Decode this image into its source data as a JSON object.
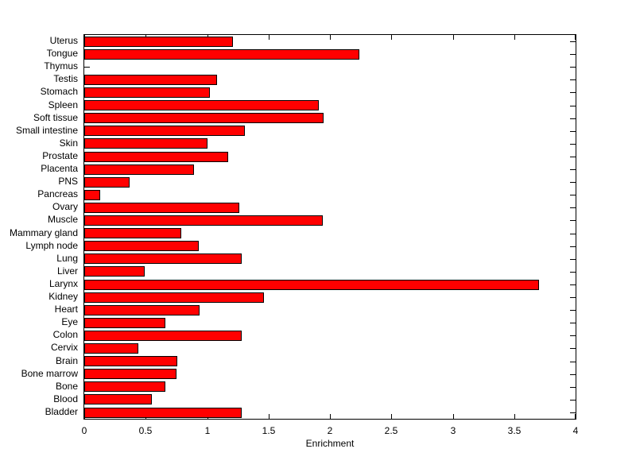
{
  "figure": {
    "background_color": "#ffffff",
    "text_color": "#000000"
  },
  "chart_data": {
    "type": "bar",
    "orientation": "horizontal",
    "title": "",
    "xlabel": "Enrichment",
    "ylabel": "",
    "xlim": [
      0,
      4
    ],
    "x_ticks": [
      0,
      0.5,
      1,
      1.5,
      2,
      2.5,
      3,
      3.5,
      4
    ],
    "x_tick_labels": [
      "0",
      "0.5",
      "1",
      "1.5",
      "2",
      "2.5",
      "3",
      "3.5",
      "4"
    ],
    "grid": false,
    "legend": "none",
    "bar_color": "#ff0000",
    "bar_edge_color": "#000000",
    "category_order": "top-to-bottom",
    "categories": [
      "Uterus",
      "Tongue",
      "Thymus",
      "Testis",
      "Stomach",
      "Spleen",
      "Soft tissue",
      "Small intestine",
      "Skin",
      "Prostate",
      "Placenta",
      "PNS",
      "Pancreas",
      "Ovary",
      "Muscle",
      "Mammary gland",
      "Lymph node",
      "Lung",
      "Liver",
      "Larynx",
      "Kidney",
      "Heart",
      "Eye",
      "Colon",
      "Cervix",
      "Brain",
      "Bone marrow",
      "Bone",
      "Blood",
      "Bladder"
    ],
    "values": [
      1.21,
      2.24,
      0,
      1.08,
      1.02,
      1.91,
      1.95,
      1.31,
      1.0,
      1.17,
      0.89,
      0.37,
      0.13,
      1.26,
      1.94,
      0.79,
      0.93,
      1.28,
      0.49,
      3.7,
      1.46,
      0.94,
      0.66,
      1.28,
      0.44,
      0.76,
      0.75,
      0.66,
      0.55,
      1.28
    ]
  }
}
